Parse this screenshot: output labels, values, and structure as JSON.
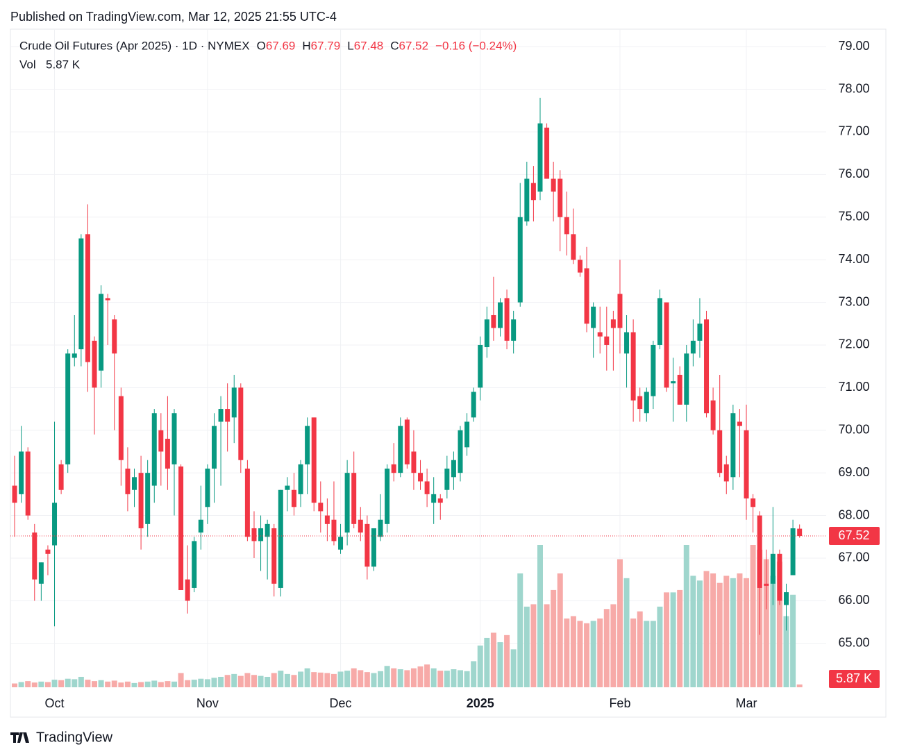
{
  "chart_data": {
    "type": "candlestick",
    "header": "Published on TradingView.com, Mar 12, 2025 21:55 UTC-4",
    "title": "Crude Oil Futures (Apr 2025) · 1D · NYMEX",
    "ohlc_labels": [
      "O",
      "H",
      "L",
      "C"
    ],
    "change": "−0.16 (−0.24%)",
    "volume_name": "Vol",
    "volume_label": "5.87 K",
    "brand": "TradingView",
    "up_color": "#089981",
    "down_color": "#f23645",
    "up_volume_color": "#9fd6cd",
    "down_volume_color": "#f7aaa8",
    "grid": true,
    "ylim": [
      63.97,
      79.41
    ],
    "xlim": [
      -0.63,
      122
    ],
    "yticks": [
      {
        "value": 65,
        "label": "65.00"
      },
      {
        "value": 66,
        "label": "66.00"
      },
      {
        "value": 67,
        "label": "67.00"
      },
      {
        "value": 68,
        "label": "68.00"
      },
      {
        "value": 69,
        "label": "69.00"
      },
      {
        "value": 70,
        "label": "70.00"
      },
      {
        "value": 71,
        "label": "71.00"
      },
      {
        "value": 72,
        "label": "72.00"
      },
      {
        "value": 73,
        "label": "73.00"
      },
      {
        "value": 74,
        "label": "74.00"
      },
      {
        "value": 75,
        "label": "75.00"
      },
      {
        "value": 76,
        "label": "76.00"
      },
      {
        "value": 77,
        "label": "77.00"
      },
      {
        "value": 78,
        "label": "78.00"
      },
      {
        "value": 79,
        "label": "79.00"
      }
    ],
    "xticks": [
      {
        "value": 6,
        "label": "Oct"
      },
      {
        "value": 29,
        "label": "Nov"
      },
      {
        "value": 49,
        "label": "Dec"
      },
      {
        "value": 70,
        "label": "2025"
      },
      {
        "value": 91,
        "label": "Feb"
      },
      {
        "value": 110,
        "label": "Mar"
      }
    ],
    "open": [
      68.7,
      68.5,
      69.5,
      67.6,
      66.4,
      67.2,
      67.3,
      69.2,
      69.2,
      71.7,
      71.9,
      74.6,
      72.1,
      71.4,
      73.1,
      72.6,
      70.8,
      69.1,
      68.6,
      69.0,
      67.8,
      68.7,
      70.0,
      69.8,
      69.2,
      69.15,
      66.5,
      66.3,
      67.6,
      68.2,
      69.1,
      70.2,
      70.5,
      70.3,
      71.0,
      69.1,
      67.7,
      67.4,
      67.5,
      67.7,
      66.3,
      68.6,
      68.6,
      68.5,
      69.2,
      70.3,
      68.3,
      68.0,
      67.9,
      67.2,
      67.6,
      69.0,
      67.9,
      67.8,
      66.8,
      67.5,
      67.8,
      69.2,
      69.0,
      70.25,
      69.5,
      69.0,
      68.8,
      68.3,
      68.4,
      68.6,
      68.9,
      69.0,
      69.6,
      70.3,
      71.0,
      71.95,
      72.7,
      72.4,
      73.1,
      72.1,
      73.0,
      74.9,
      75.8,
      75.6,
      77.1,
      75.9,
      75.9,
      75.0,
      74.6,
      74.0,
      73.8,
      72.4,
      72.3,
      72.2,
      72.6,
      73.2,
      71.8,
      72.3,
      70.8,
      70.4,
      70.8,
      72.0,
      73.0,
      71.1,
      71.3,
      70.6,
      71.8,
      72.1,
      72.6,
      70.7,
      70.0,
      69.2,
      68.9,
      70.2,
      70.0,
      68.4,
      68.0,
      66.4,
      66.4,
      67.1,
      65.9,
      66.6,
      67.69
    ],
    "high": [
      69.4,
      70.1,
      69.6,
      67.8,
      66.9,
      67.3,
      70.2,
      69.3,
      71.9,
      72.7,
      74.6,
      75.3,
      72.2,
      73.4,
      73.2,
      72.7,
      71.0,
      69.6,
      69.1,
      69.4,
      69.3,
      70.5,
      70.4,
      70.8,
      70.5,
      69.2,
      67.3,
      67.5,
      68.7,
      69.2,
      70.4,
      70.8,
      71.1,
      71.3,
      71.1,
      69.3,
      68.1,
      68.0,
      67.9,
      67.8,
      68.6,
      68.9,
      69.0,
      69.3,
      70.3,
      70.3,
      68.8,
      68.4,
      68.8,
      67.8,
      69.3,
      69.5,
      68.2,
      68.0,
      67.7,
      68.5,
      69.2,
      69.7,
      70.3,
      70.3,
      70.0,
      69.3,
      69.1,
      68.9,
      68.5,
      69.4,
      69.5,
      70.1,
      70.4,
      71.0,
      72.2,
      72.9,
      73.6,
      73.1,
      73.3,
      72.8,
      75.8,
      76.3,
      76.2,
      77.8,
      77.2,
      76.3,
      76.1,
      75.6,
      75.2,
      74.1,
      74.3,
      73.0,
      72.9,
      72.9,
      72.8,
      74.0,
      72.7,
      72.6,
      71.0,
      71.0,
      72.1,
      73.3,
      73.0,
      71.7,
      71.5,
      72.0,
      72.6,
      73.1,
      72.8,
      71.0,
      71.3,
      69.4,
      70.6,
      70.5,
      70.6,
      68.5,
      68.1,
      67.2,
      68.2,
      67.2,
      66.4,
      67.9,
      67.79
    ],
    "low": [
      67.5,
      68.3,
      67.9,
      66.0,
      66.0,
      66.6,
      65.4,
      68.5,
      69.0,
      71.5,
      71.5,
      70.9,
      69.9,
      71.0,
      72.0,
      70.0,
      68.7,
      68.1,
      68.2,
      67.2,
      67.5,
      68.3,
      68.7,
      68.6,
      68.0,
      66.3,
      65.7,
      66.2,
      67.2,
      67.8,
      68.3,
      68.7,
      69.5,
      69.7,
      69.0,
      67.4,
      67.0,
      66.7,
      66.5,
      66.1,
      66.1,
      68.1,
      68.0,
      68.2,
      68.5,
      68.1,
      67.6,
      67.4,
      67.3,
      67.1,
      67.3,
      67.7,
      67.4,
      66.5,
      66.7,
      67.4,
      67.6,
      68.8,
      68.9,
      69.1,
      68.6,
      68.6,
      68.2,
      67.8,
      67.9,
      68.4,
      68.6,
      68.8,
      69.4,
      70.2,
      70.7,
      71.7,
      72.1,
      72.2,
      71.9,
      71.8,
      72.9,
      74.8,
      74.9,
      75.4,
      75.9,
      74.9,
      74.2,
      74.1,
      73.9,
      73.6,
      72.3,
      71.7,
      71.8,
      71.4,
      71.4,
      71.8,
      71.0,
      70.2,
      70.2,
      70.2,
      70.5,
      71.9,
      70.9,
      70.2,
      70.6,
      70.2,
      71.5,
      71.7,
      70.3,
      69.9,
      68.9,
      68.5,
      68.6,
      68.9,
      67.9,
      67.6,
      65.2,
      65.8,
      65.9,
      65.9,
      65.3,
      66.6,
      67.48
    ],
    "close": [
      68.3,
      69.5,
      68.0,
      66.5,
      66.9,
      67.1,
      68.3,
      68.6,
      71.8,
      71.8,
      74.5,
      71.6,
      71.0,
      73.2,
      73.05,
      71.8,
      69.3,
      68.5,
      68.9,
      67.7,
      69.0,
      70.4,
      69.5,
      69.1,
      70.4,
      66.25,
      66.0,
      67.4,
      67.9,
      69.1,
      70.1,
      70.5,
      70.2,
      71.0,
      69.3,
      67.5,
      67.4,
      67.7,
      67.8,
      66.4,
      68.6,
      68.7,
      68.2,
      69.2,
      70.1,
      68.3,
      68.1,
      67.8,
      67.4,
      67.5,
      69.0,
      67.8,
      67.6,
      66.8,
      67.7,
      67.9,
      69.1,
      69.0,
      70.1,
      69.2,
      69.0,
      68.8,
      68.5,
      68.5,
      68.3,
      69.1,
      69.3,
      70.0,
      70.2,
      70.9,
      72.0,
      72.6,
      72.4,
      73.0,
      72.1,
      72.6,
      75.0,
      75.9,
      75.4,
      77.2,
      75.9,
      75.6,
      75.0,
      74.6,
      74.0,
      73.7,
      72.5,
      72.9,
      72.2,
      72.0,
      72.4,
      72.4,
      72.3,
      70.7,
      70.5,
      70.9,
      72.0,
      73.1,
      71.0,
      71.15,
      70.6,
      71.8,
      72.1,
      72.5,
      70.4,
      70.0,
      69.0,
      68.8,
      70.4,
      70.1,
      68.4,
      68.2,
      66.3,
      66.35,
      67.1,
      66.0,
      66.2,
      67.7,
      67.52
    ],
    "volume": [
      8,
      11,
      13,
      10,
      12,
      11,
      16,
      15,
      18,
      17,
      22,
      16,
      13,
      15,
      12,
      14,
      10,
      12,
      9,
      11,
      12,
      14,
      11,
      13,
      12,
      30,
      15,
      16,
      18,
      17,
      20,
      22,
      26,
      28,
      24,
      30,
      26,
      24,
      22,
      30,
      35,
      28,
      26,
      33,
      40,
      32,
      31,
      30,
      28,
      33,
      35,
      40,
      36,
      32,
      30,
      34,
      45,
      40,
      38,
      36,
      40,
      44,
      48,
      40,
      35,
      35,
      38,
      36,
      34,
      55,
      88,
      104,
      115,
      95,
      110,
      80,
      240,
      170,
      175,
      300,
      175,
      205,
      240,
      145,
      150,
      140,
      135,
      140,
      145,
      165,
      175,
      270,
      230,
      145,
      160,
      140,
      140,
      170,
      200,
      200,
      205,
      300,
      235,
      225,
      245,
      240,
      220,
      235,
      230,
      240,
      230,
      300,
      290,
      270,
      235,
      265,
      150,
      195,
      5.87
    ]
  }
}
